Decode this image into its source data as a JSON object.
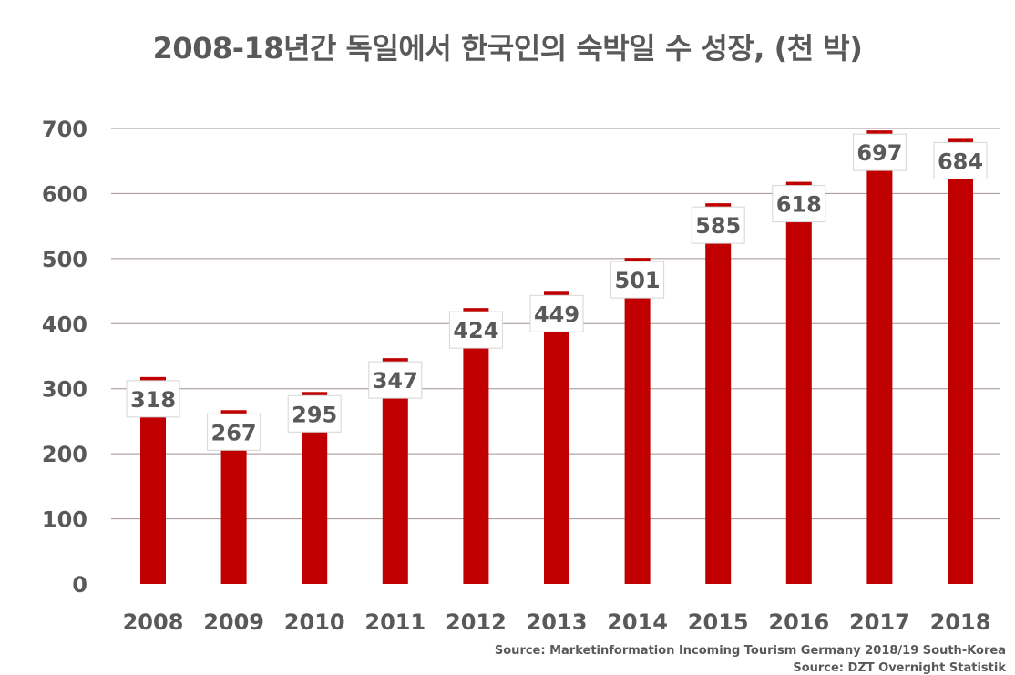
{
  "chart_data": {
    "type": "bar",
    "title": "2008-18년간 독일에서 한국인의 숙박일 수 성장, (천 박)",
    "categories": [
      "2008",
      "2009",
      "2010",
      "2011",
      "2012",
      "2013",
      "2014",
      "2015",
      "2016",
      "2017",
      "2018"
    ],
    "values": [
      318,
      267,
      295,
      347,
      424,
      449,
      501,
      585,
      618,
      697,
      684
    ],
    "ylim": [
      0,
      700
    ],
    "yticks": [
      0,
      100,
      200,
      300,
      400,
      500,
      600,
      700
    ],
    "grid": true,
    "xlabel": "",
    "ylabel": "",
    "bar_color": "#C00000",
    "grid_color": "#A09090",
    "text_color": "#595959"
  },
  "sources": {
    "line1": "Source: Marketinformation Incoming Tourism Germany 2018/19 South-Korea",
    "line2": "Source: DZT Overnight Statistik"
  }
}
